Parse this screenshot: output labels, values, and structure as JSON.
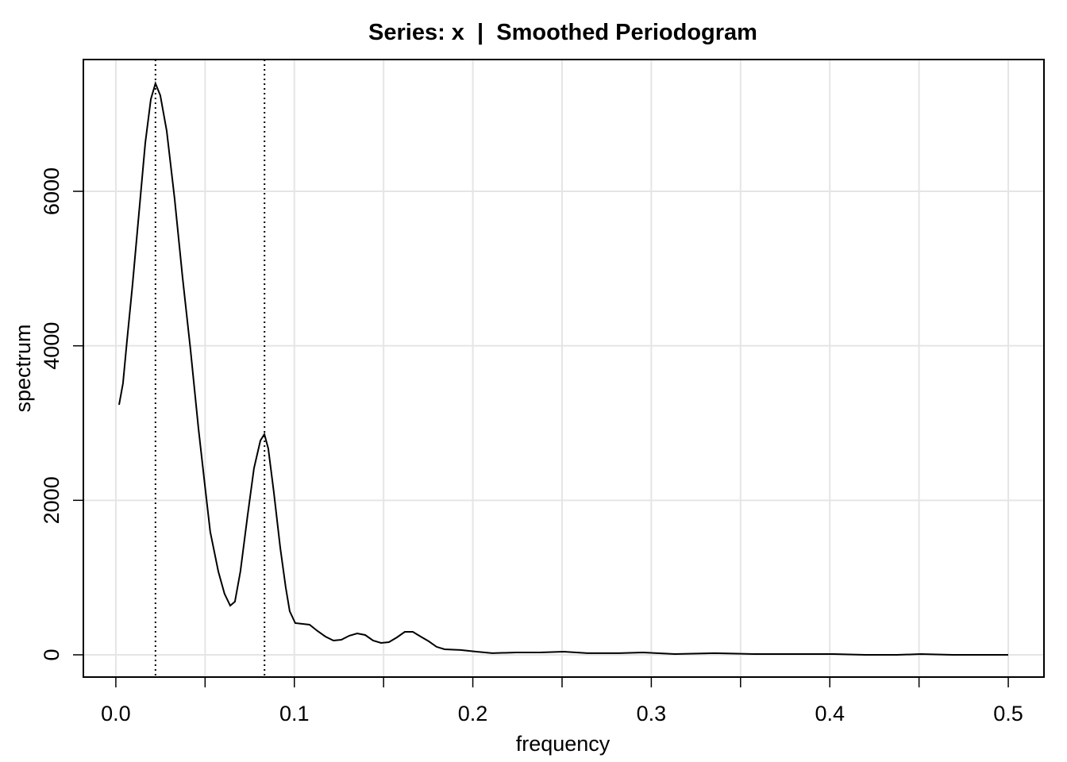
{
  "chart_data": {
    "type": "line",
    "title": "Series: x  |  Smoothed Periodogram",
    "xlabel": "frequency",
    "ylabel": "spectrum",
    "color": "#000000",
    "grid": true,
    "x": [
      0.0018,
      0.004,
      0.0062,
      0.0093,
      0.0129,
      0.0165,
      0.0196,
      0.0222,
      0.0249,
      0.0285,
      0.0329,
      0.0374,
      0.0418,
      0.0463,
      0.0498,
      0.0529,
      0.0574,
      0.0609,
      0.0641,
      0.0667,
      0.0698,
      0.0738,
      0.0774,
      0.081,
      0.0832,
      0.0854,
      0.0885,
      0.0921,
      0.0952,
      0.0974,
      0.1005,
      0.1041,
      0.1085,
      0.113,
      0.1174,
      0.1219,
      0.1263,
      0.1308,
      0.1352,
      0.1397,
      0.1441,
      0.1486,
      0.153,
      0.1575,
      0.1619,
      0.1664,
      0.1708,
      0.1753,
      0.1797,
      0.1842,
      0.1931,
      0.202,
      0.2109,
      0.2242,
      0.2375,
      0.2509,
      0.2642,
      0.282,
      0.2954,
      0.3132,
      0.3354,
      0.3577,
      0.3799,
      0.4021,
      0.4199,
      0.4377,
      0.4511,
      0.4689,
      0.5
    ],
    "values": [
      3236,
      3514,
      4058,
      4778,
      5702,
      6627,
      7192,
      7397,
      7243,
      6781,
      5908,
      4880,
      3956,
      2928,
      2209,
      1593,
      1079,
      791,
      637,
      688,
      1079,
      1798,
      2414,
      2774,
      2856,
      2671,
      2106,
      1387,
      873,
      565,
      411,
      401,
      390,
      308,
      236,
      185,
      195,
      247,
      277,
      257,
      185,
      154,
      164,
      226,
      298,
      298,
      236,
      175,
      103,
      72,
      62,
      41,
      21,
      31,
      31,
      41,
      21,
      21,
      31,
      10,
      21,
      10,
      10,
      10,
      0,
      0,
      10,
      0,
      0
    ],
    "vlines": [
      0.0222,
      0.0833
    ],
    "xlim": [
      -0.0182,
      0.52
    ],
    "ylim": [
      -288,
      7706
    ],
    "xticks": [
      {
        "value": 0,
        "label": "0.0"
      },
      0.1,
      0.2,
      0.3,
      0.4,
      0.5
    ],
    "xminor_ticks": [
      0.05,
      0.15,
      0.25,
      0.35,
      0.45
    ],
    "yticks": [
      0,
      2000,
      4000,
      6000
    ]
  }
}
